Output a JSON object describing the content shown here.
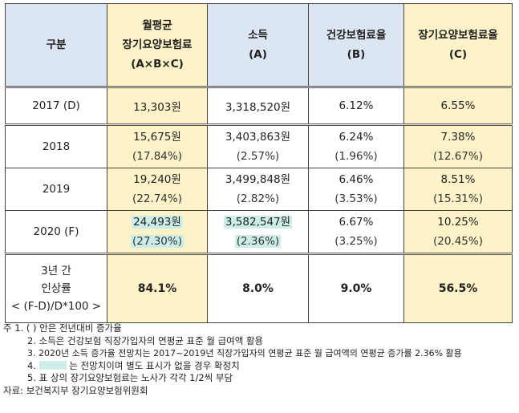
{
  "header": {
    "col1": "구분",
    "col2_line1": "월평균",
    "col2_line2": "장기요양보험료",
    "col2_line3": "(A×B×C)",
    "col3_line1": "소득",
    "col3_line2": "(A)",
    "col4_line1": "건강보험료율",
    "col4_line2": "(B)",
    "col5_line1": "장기요양보험료율",
    "col5_line2": "(C)"
  },
  "rows": [
    {
      "year": "2017 (D)",
      "premium": "13,303원",
      "premium_pct": "",
      "income": "3,318,520원",
      "income_pct": "",
      "health": "6.12%",
      "health_pct": "",
      "ltc": "6.55%",
      "ltc_pct": ""
    },
    {
      "year": "2018",
      "premium": "15,675원",
      "premium_pct": "(17.84%)",
      "income": "3,403,863원",
      "income_pct": "(2.57%)",
      "health": "6.24%",
      "health_pct": "(1.96%)",
      "ltc": "7.38%",
      "ltc_pct": "(12.67%)"
    },
    {
      "year": "2019",
      "premium": "19,240원",
      "premium_pct": "(22.74%)",
      "income": "3,499,848원",
      "income_pct": "(2.82%)",
      "health": "6.46%",
      "health_pct": "(3.53%)",
      "ltc": "8.51%",
      "ltc_pct": "(15.31%)"
    },
    {
      "year": "2020 (F)",
      "premium": "24,493원",
      "premium_pct": "(27.30%)",
      "income": "3,582,547원",
      "income_pct": "(2.36%)",
      "health": "6.67%",
      "health_pct": "(3.25%)",
      "ltc": "10.25%",
      "ltc_pct": "(20.45%)"
    }
  ],
  "summary": {
    "label_line1": "3년 간",
    "label_line2": "인상률",
    "label_line3": "< (F-D)/D*100 >",
    "premium": "84.1%",
    "income": "8.0%",
    "health": "9.0%",
    "ltc": "56.5%"
  },
  "notes": {
    "n1": "주 1. ( ) 안은 전년대비 증가율",
    "n2": "2. 소득은 건강보험 직장가입자의 연평균 표준 월 급여액 활용",
    "n3": "3. 2020년 소득 증가율 전망치는 2017~2019년 직장가입자의 연평균 표준 월 급여액의 연평균 증가률 2.36% 활용",
    "n4_prefix": "4.",
    "n4_suffix": "는 전망치이며 별도 표시가 없을 경우 확정치",
    "n5": "5. 표 상의 장기요양보험료는 노사가 각각 1/2씩 부담",
    "source": "자료: 보건복지부 장기요양보험위원회"
  },
  "colors": {
    "header_blue": "#dbe6f2",
    "header_yellow": "#fdf2c8",
    "estimate_highlight": "#cdeee8"
  }
}
